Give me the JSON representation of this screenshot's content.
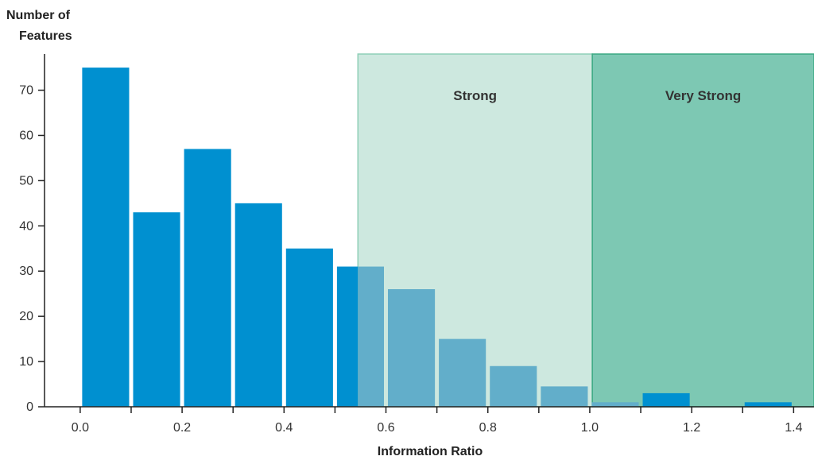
{
  "chart_data": {
    "type": "bar",
    "ylabel_line1": "Number of",
    "ylabel_line2": "Features",
    "xlabel": "Information Ratio",
    "xlim": [
      -0.07,
      1.44
    ],
    "ylim": [
      0,
      78
    ],
    "x_ticks": [
      {
        "value": 0.0,
        "label": "0.0"
      },
      {
        "value": 0.2,
        "label": "0.2"
      },
      {
        "value": 0.4,
        "label": "0.4"
      },
      {
        "value": 0.6,
        "label": "0.6"
      },
      {
        "value": 0.8,
        "label": "0.8"
      },
      {
        "value": 1.0,
        "label": "1.0"
      },
      {
        "value": 1.2,
        "label": "1.2"
      },
      {
        "value": 1.4,
        "label": "1.4"
      }
    ],
    "y_ticks": [
      {
        "value": 0,
        "label": "0"
      },
      {
        "value": 10,
        "label": "10"
      },
      {
        "value": 20,
        "label": "20"
      },
      {
        "value": 30,
        "label": "30"
      },
      {
        "value": 40,
        "label": "40"
      },
      {
        "value": 50,
        "label": "50"
      },
      {
        "value": 60,
        "label": "60"
      },
      {
        "value": 70,
        "label": "70"
      }
    ],
    "bin_width": 0.1,
    "bins": [
      {
        "x0": 0.0,
        "x1": 0.1,
        "value": 75
      },
      {
        "x0": 0.1,
        "x1": 0.2,
        "value": 43
      },
      {
        "x0": 0.2,
        "x1": 0.3,
        "value": 57
      },
      {
        "x0": 0.3,
        "x1": 0.4,
        "value": 45
      },
      {
        "x0": 0.4,
        "x1": 0.5,
        "value": 35
      },
      {
        "x0": 0.5,
        "x1": 0.6,
        "value": 31
      },
      {
        "x0": 0.6,
        "x1": 0.7,
        "value": 26
      },
      {
        "x0": 0.7,
        "x1": 0.8,
        "value": 15
      },
      {
        "x0": 0.8,
        "x1": 0.9,
        "value": 9
      },
      {
        "x0": 0.9,
        "x1": 1.0,
        "value": 4.5
      },
      {
        "x0": 1.0,
        "x1": 1.1,
        "value": 1
      },
      {
        "x0": 1.1,
        "x1": 1.2,
        "value": 3
      },
      {
        "x0": 1.2,
        "x1": 1.3,
        "value": 0
      },
      {
        "x0": 1.3,
        "x1": 1.4,
        "value": 1
      }
    ],
    "zones": [
      {
        "label": "Strong",
        "x_start": 0.545,
        "x_end": 1.005,
        "color": "#cde8df",
        "border": "#8fcfb7"
      },
      {
        "label": "Very Strong",
        "x_start": 1.005,
        "x_end": 1.44,
        "color": "#7dc8b3",
        "border": "#3aa882"
      }
    ],
    "bar_color": "#0090d0",
    "bar_color_in_strong_zone": "#62aeca",
    "axis_color": "#222222",
    "grid": false,
    "legend": "none"
  }
}
